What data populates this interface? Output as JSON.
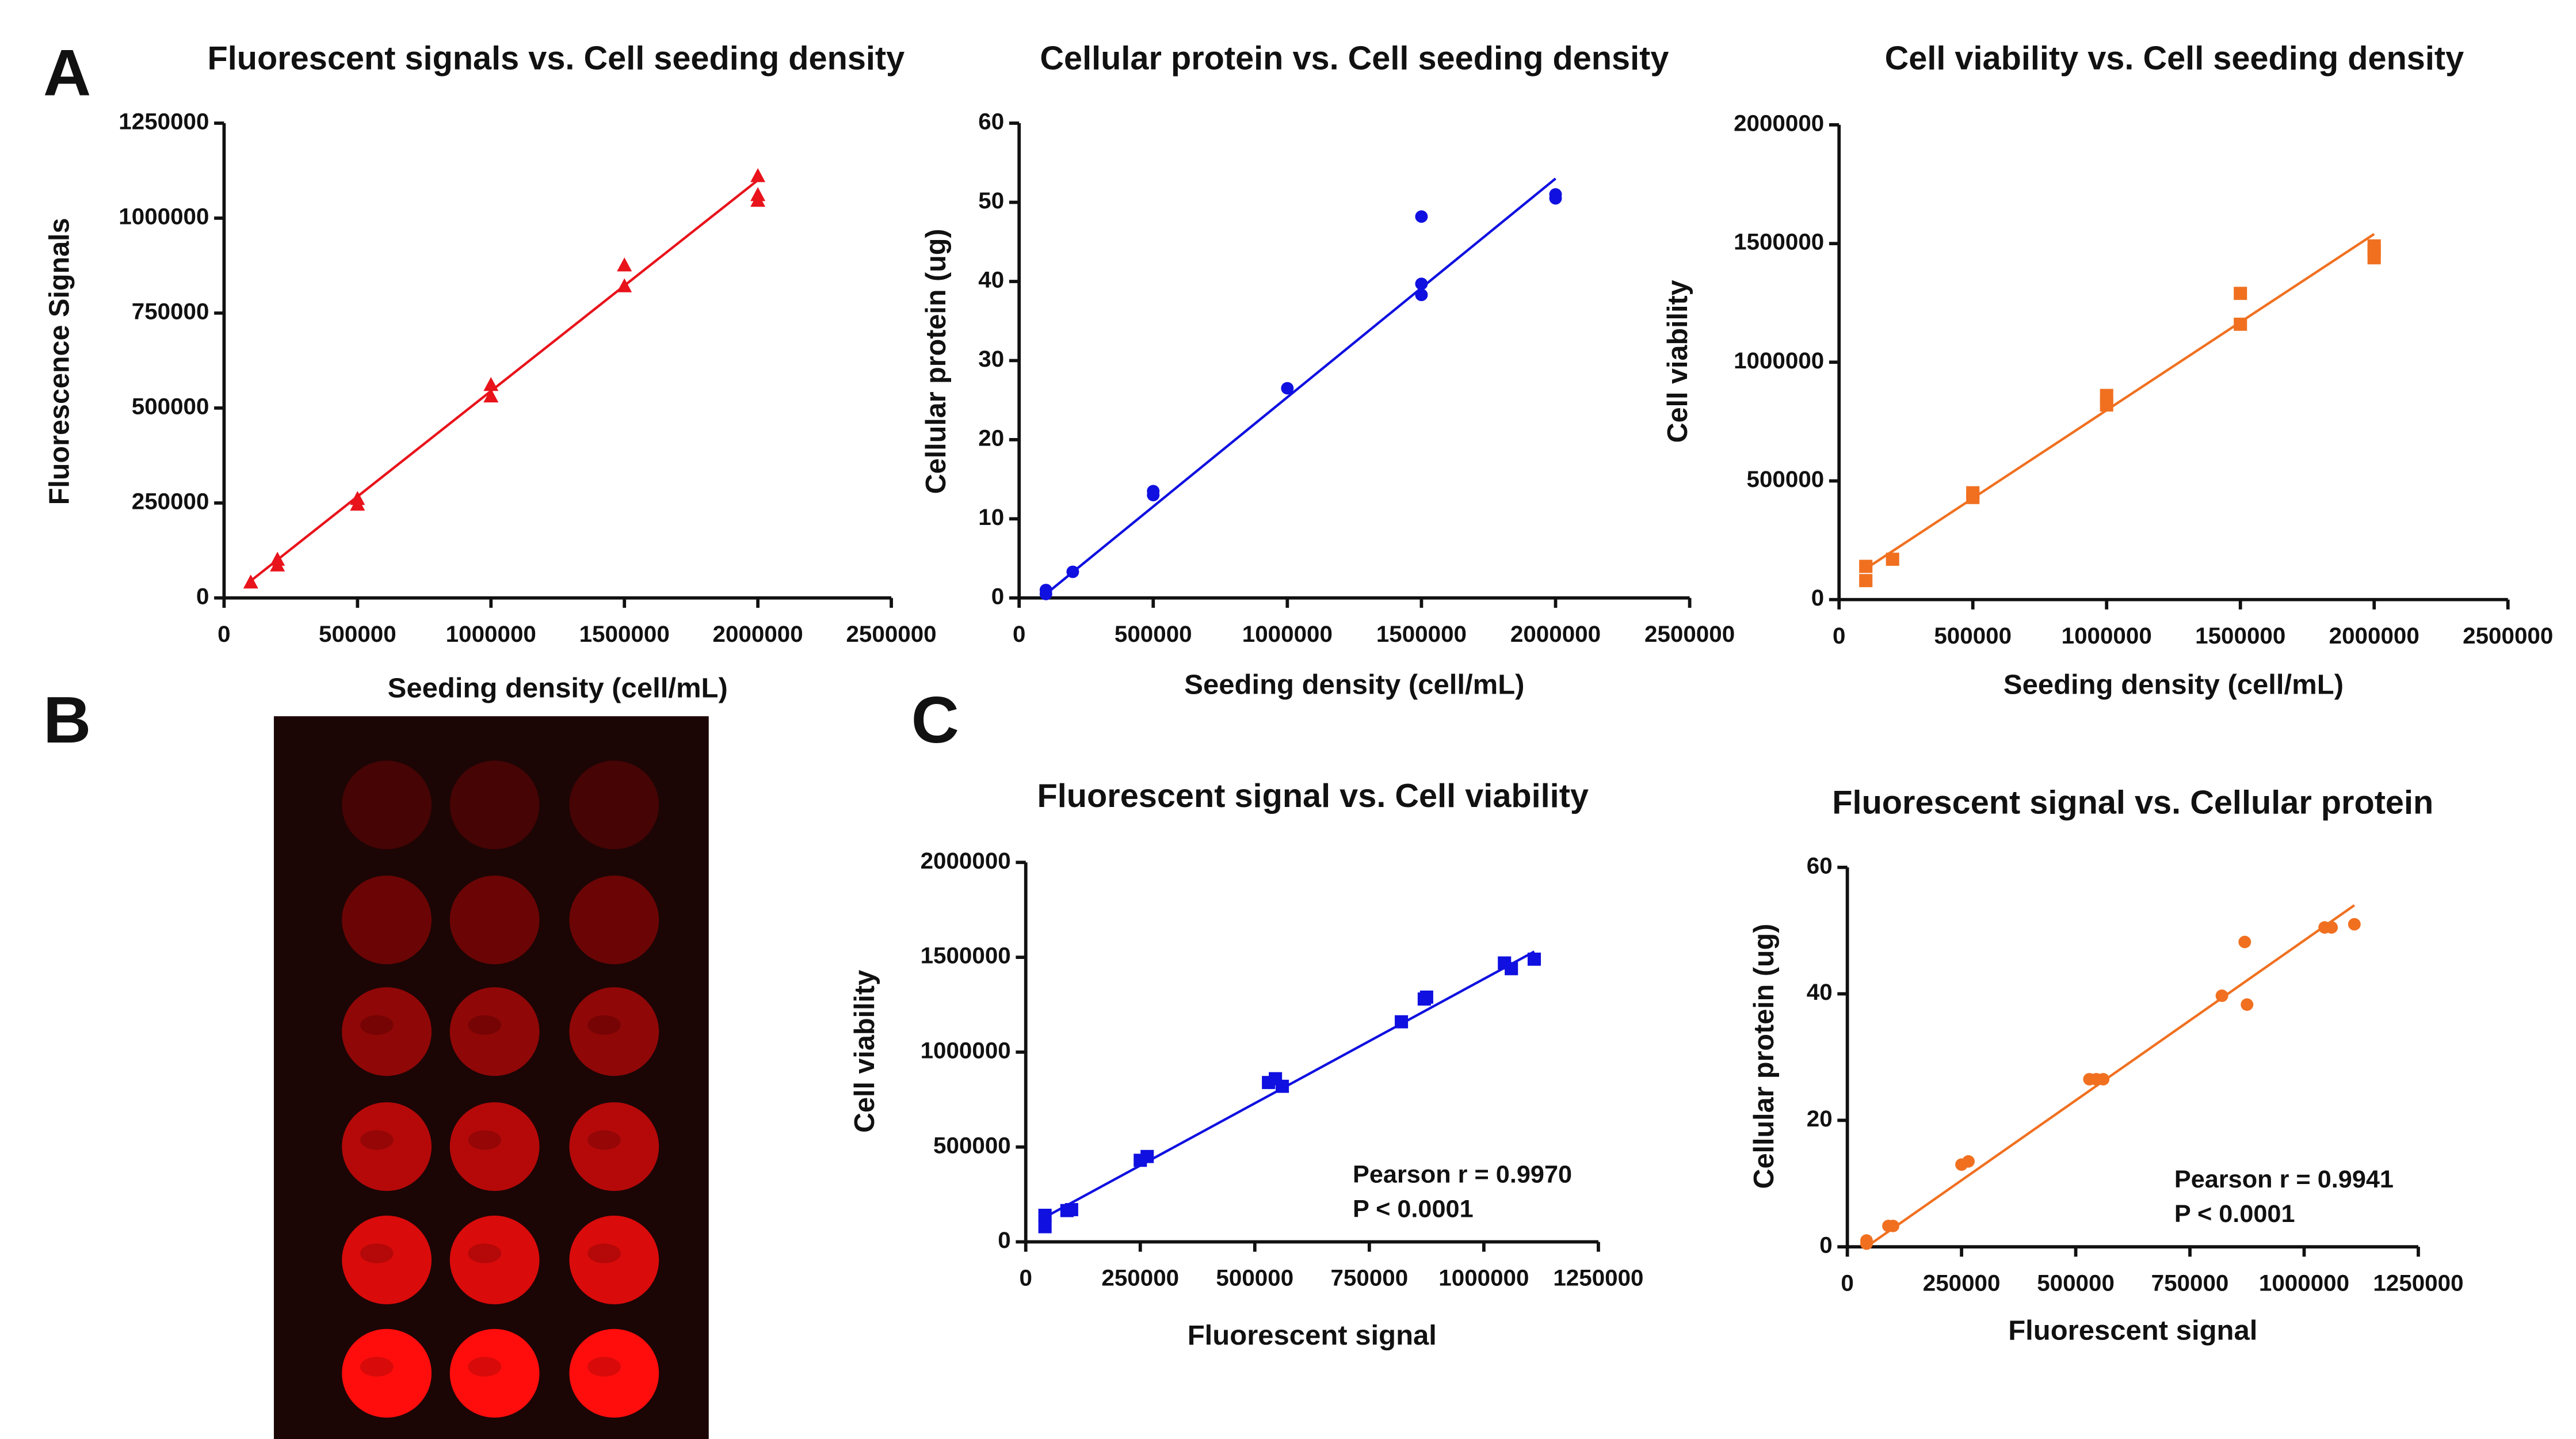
{
  "panel_labels": [
    "A",
    "B",
    "C"
  ],
  "chart_data": [
    {
      "type": "scatter",
      "title": "Fluorescent signals vs. Cell seeding density",
      "xlabel": "Seeding density (cell/mL)",
      "ylabel": "Fluorescence Signals",
      "x": [
        100000,
        200000,
        200000,
        500000,
        500000,
        1000000,
        1000000,
        1500000,
        1500000,
        2000000,
        2000000,
        2000000
      ],
      "y": [
        40000,
        85000,
        100000,
        245000,
        260000,
        530000,
        560000,
        820000,
        875000,
        1045000,
        1060000,
        1110000
      ],
      "color": "#e8131b",
      "marker": "triangle",
      "xlim": [
        0,
        2500000
      ],
      "xticks": [
        0,
        500000,
        1000000,
        1500000,
        2000000,
        2500000
      ],
      "ylim": [
        0,
        1250000
      ],
      "yticks": [
        0,
        250000,
        500000,
        750000,
        1000000,
        1250000
      ],
      "fit": {
        "x": [
          100000,
          2000000
        ],
        "y": [
          45000,
          1100000
        ]
      }
    },
    {
      "type": "scatter",
      "title": "Cellular protein vs. Cell seeding density",
      "xlabel": "Seeding density (cell/mL)",
      "ylabel": "Cellular protein (ug)",
      "x": [
        100000,
        100000,
        200000,
        500000,
        500000,
        1000000,
        1500000,
        1500000,
        1500000,
        2000000,
        2000000
      ],
      "y": [
        0.5,
        1,
        3.3,
        13,
        13.5,
        26.5,
        38.3,
        39.7,
        48.2,
        50.5,
        51
      ],
      "color": "#1010e0",
      "marker": "circle",
      "xlim": [
        0,
        2500000
      ],
      "xticks": [
        0,
        500000,
        1000000,
        1500000,
        2000000,
        2500000
      ],
      "ylim": [
        0,
        60
      ],
      "yticks": [
        0,
        10,
        20,
        30,
        40,
        50,
        60
      ],
      "fit": {
        "x": [
          100000,
          2000000
        ],
        "y": [
          0.5,
          53
        ]
      }
    },
    {
      "type": "scatter",
      "title": "Cell viability vs. Cell seeding density",
      "xlabel": "Seeding density (cell/mL)",
      "ylabel": "Cell viability",
      "x": [
        100000,
        100000,
        200000,
        500000,
        500000,
        1000000,
        1000000,
        1500000,
        1500000,
        2000000,
        2000000,
        2000000
      ],
      "y": [
        80000,
        140000,
        170000,
        430000,
        450000,
        820000,
        860000,
        1160000,
        1290000,
        1440000,
        1470000,
        1490000
      ],
      "color": "#f07020",
      "marker": "square",
      "xlim": [
        0,
        2500000
      ],
      "xticks": [
        0,
        500000,
        1000000,
        1500000,
        2000000,
        2500000
      ],
      "ylim": [
        0,
        2000000
      ],
      "yticks": [
        0,
        500000,
        1000000,
        1500000,
        2000000
      ],
      "fit": {
        "x": [
          100000,
          2000000
        ],
        "y": [
          130000,
          1540000
        ]
      }
    },
    {
      "type": "scatter",
      "title": "Fluorescent signal vs. Cell viability",
      "xlabel": "Fluorescent signal",
      "ylabel": "Cell viability",
      "x": [
        42000,
        42000,
        90000,
        100000,
        250000,
        265000,
        530000,
        545000,
        560000,
        820000,
        870000,
        875000,
        1045000,
        1060000,
        1110000
      ],
      "y": [
        80000,
        140000,
        165000,
        170000,
        430000,
        450000,
        840000,
        860000,
        820000,
        1160000,
        1280000,
        1290000,
        1470000,
        1440000,
        1490000
      ],
      "color": "#1010e0",
      "marker": "square",
      "xlim": [
        0,
        1250000
      ],
      "xticks": [
        0,
        250000,
        500000,
        750000,
        1000000,
        1250000
      ],
      "ylim": [
        0,
        2000000
      ],
      "yticks": [
        0,
        500000,
        1000000,
        1500000,
        2000000
      ],
      "fit": {
        "x": [
          42000,
          1110000
        ],
        "y": [
          130000,
          1530000
        ]
      },
      "annotations": [
        "Pearson r = 0.9970",
        "P < 0.0001"
      ]
    },
    {
      "type": "scatter",
      "title": "Fluorescent signal vs. Cellular protein",
      "xlabel": "Fluorescent signal",
      "ylabel": "Cellular protein (ug)",
      "x": [
        42000,
        42000,
        90000,
        100000,
        250000,
        265000,
        530000,
        545000,
        560000,
        820000,
        870000,
        875000,
        1045000,
        1060000,
        1110000
      ],
      "y": [
        0.5,
        1,
        3.3,
        3.3,
        13,
        13.5,
        26.5,
        26.5,
        26.5,
        39.7,
        48.2,
        38.3,
        50.5,
        50.5,
        51
      ],
      "color": "#f07020",
      "marker": "circle",
      "xlim": [
        0,
        1250000
      ],
      "xticks": [
        0,
        250000,
        500000,
        750000,
        1000000,
        1250000
      ],
      "ylim": [
        0,
        60
      ],
      "yticks": [
        0,
        20,
        40,
        60
      ],
      "fit": {
        "x": [
          42000,
          1110000
        ],
        "y": [
          0,
          54
        ]
      },
      "annotations": [
        "Pearson r = 0.9941",
        "P < 0.0001"
      ]
    }
  ]
}
